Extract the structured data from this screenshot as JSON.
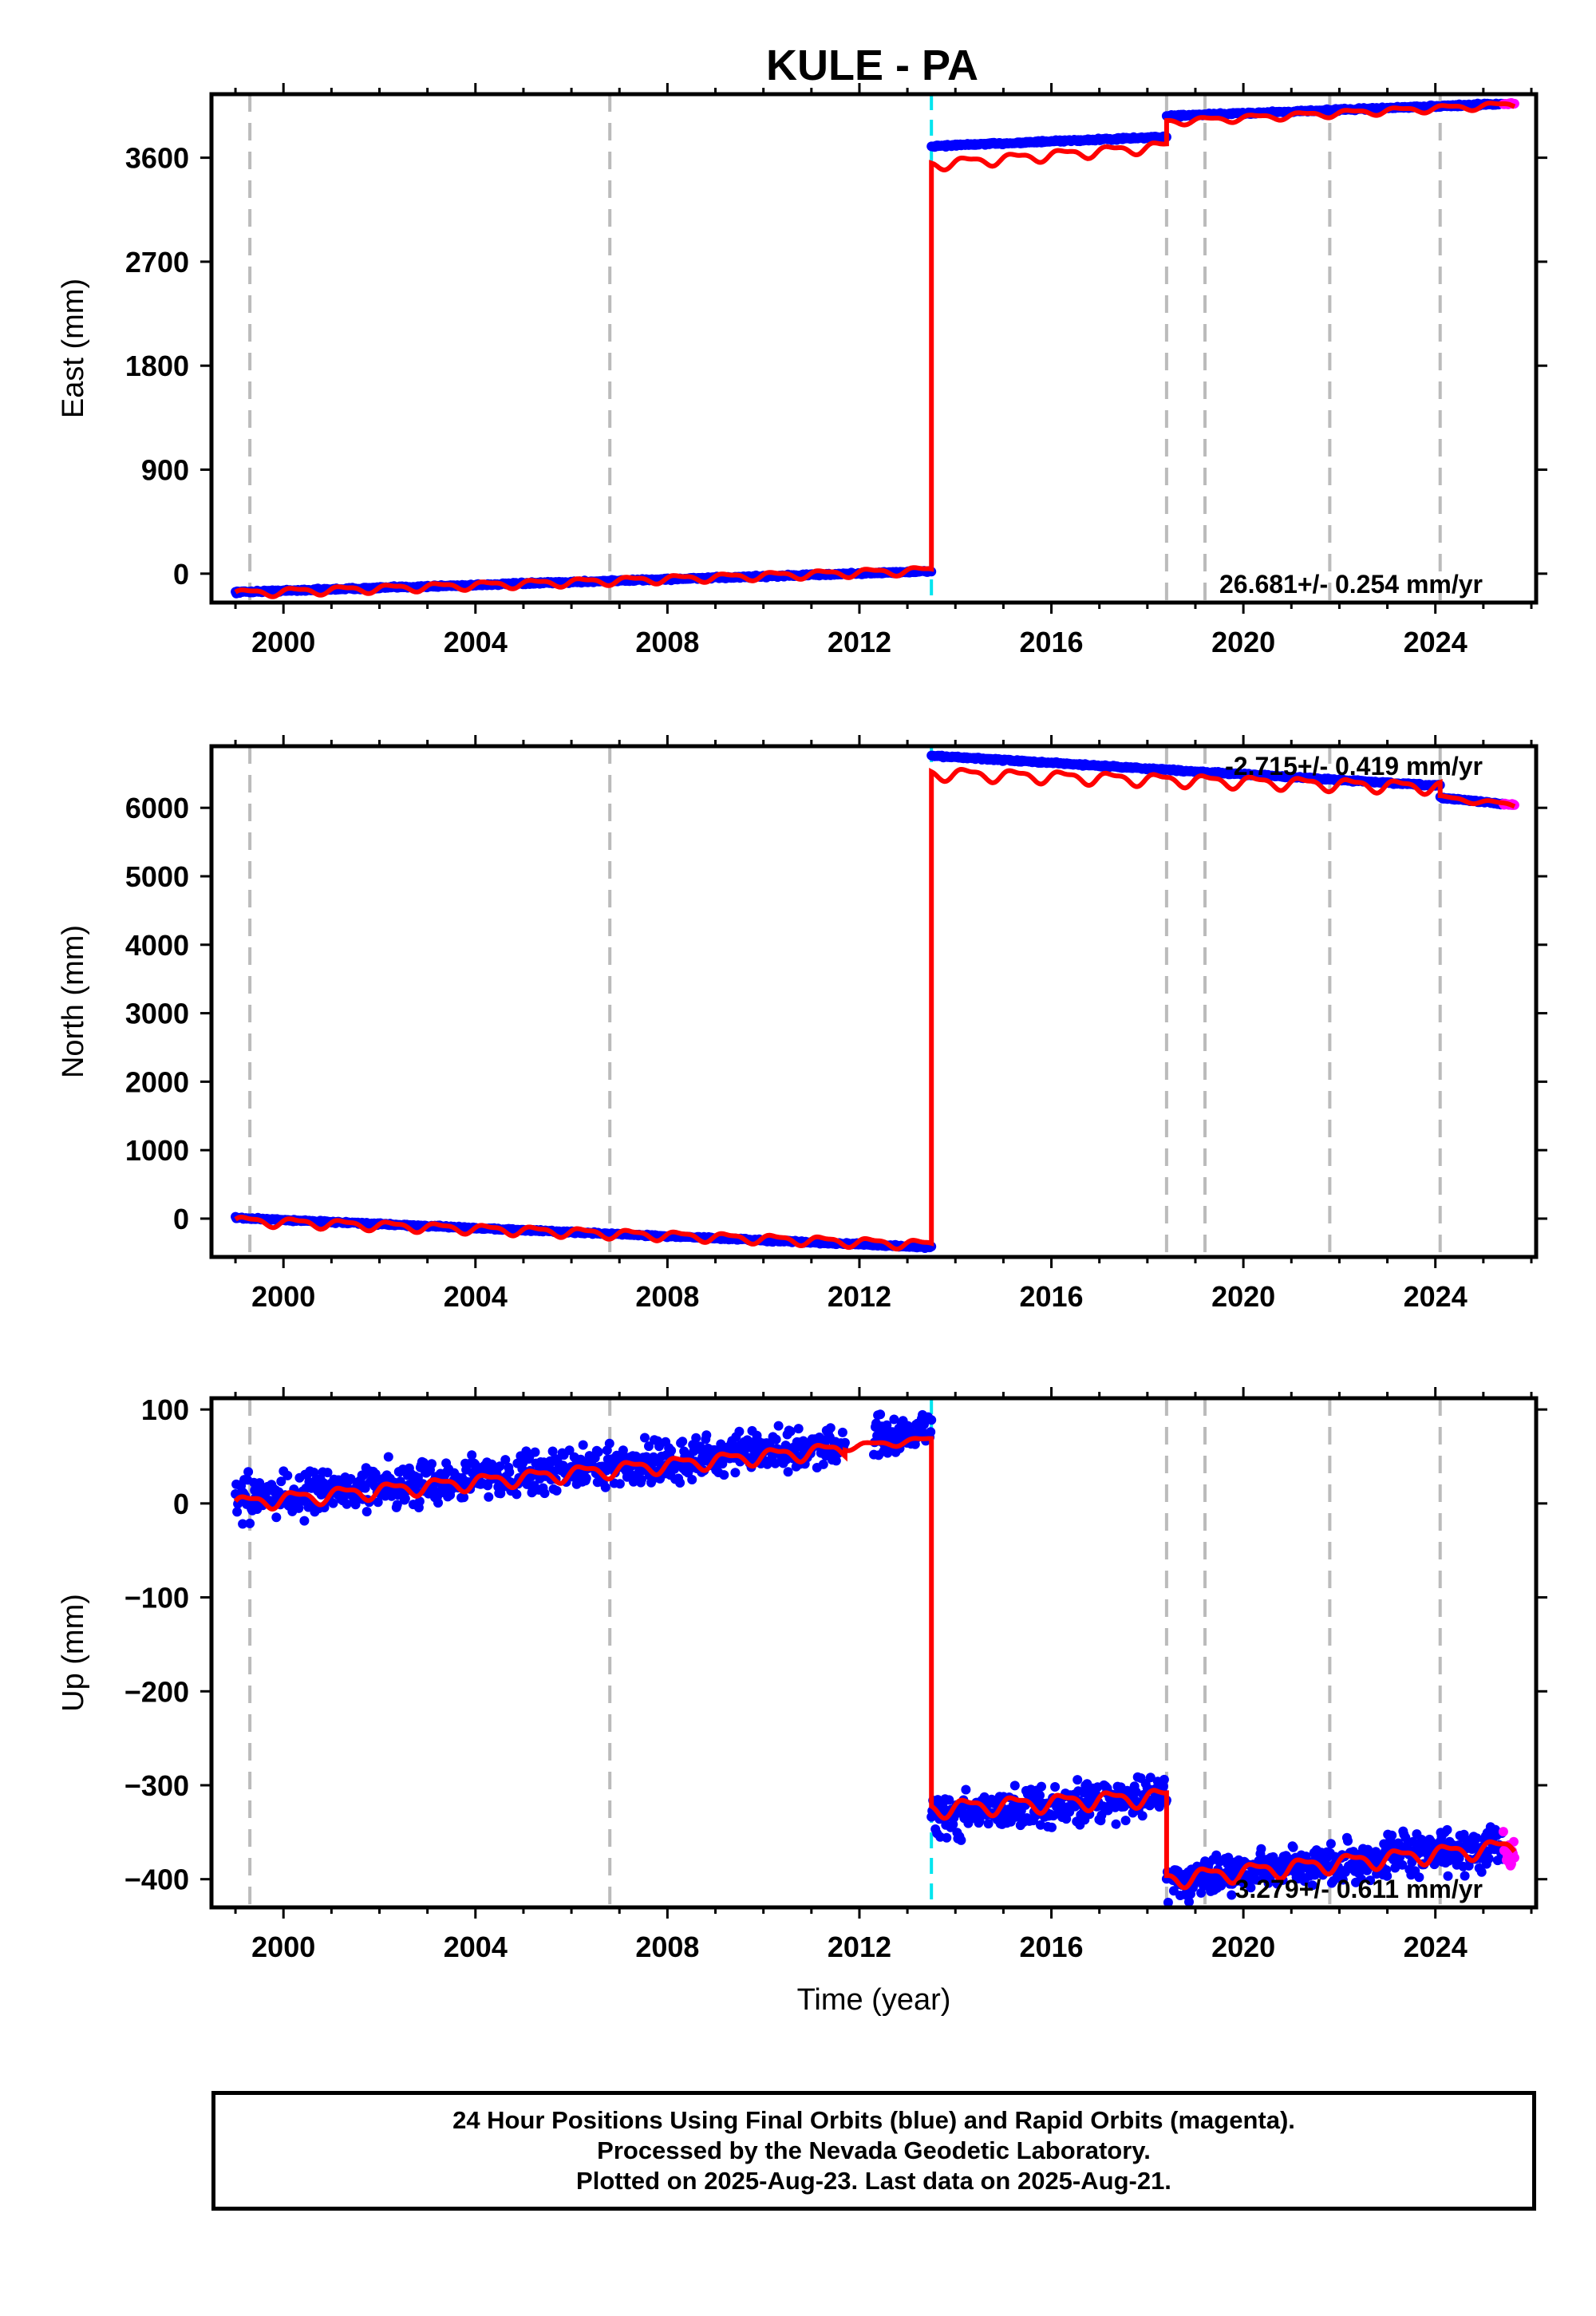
{
  "title": "KULE - PA",
  "footer": {
    "line1": "24 Hour Positions Using Final Orbits (blue) and Rapid Orbits (magenta).",
    "line2": "Processed by the Nevada Geodetic Laboratory.",
    "line3": "Plotted on 2025-Aug-23. Last data on 2025-Aug-21."
  },
  "colors": {
    "final_orbits": "#0000ff",
    "rapid_orbits": "#ff00ff",
    "model_fit": "#ff0000",
    "equipment_change": "#bbbbbb",
    "earthquake_offset": "#00e5ee"
  },
  "chart_data": [
    {
      "type": "scatter",
      "component": "East",
      "title": "KULE - PA",
      "xlabel": "",
      "ylabel": "East (mm)",
      "xlim": [
        1998.5,
        2026.1
      ],
      "ylim": [
        -250,
        4150
      ],
      "xticks": [
        2000,
        2004,
        2008,
        2012,
        2016,
        2020,
        2024
      ],
      "yticks": [
        0,
        900,
        1800,
        2700,
        3600
      ],
      "vertical_lines_dashed": [
        1999.3,
        2006.8,
        2018.4,
        2019.2,
        2021.8,
        2024.1
      ],
      "vertical_lines_cyan": [
        2013.5
      ],
      "rate_label": "26.681+/- 0.254 mm/yr",
      "series": [
        {
          "segments": [
            {
              "start": 1999.0,
              "end": 2013.5,
              "y0": -160,
              "y1": 20,
              "spread": 10
            },
            {
              "start": 2013.5,
              "end": 2018.4,
              "y0": 3700,
              "y1": 3780,
              "spread": 10
            },
            {
              "start": 2018.4,
              "end": 2025.65,
              "y0": 3960,
              "y1": 4070,
              "spread": 10
            }
          ]
        },
        {
          "rapid_start": 2025.4
        }
      ],
      "fit": {
        "segments": [
          {
            "start": 1999.0,
            "end": 2013.5,
            "y0": -170,
            "y1": 30,
            "amp": 30
          },
          {
            "start": 2013.5,
            "end": 2018.4,
            "y0": 3540,
            "y1": 3700,
            "amp": 40
          },
          {
            "start": 2018.4,
            "end": 2025.65,
            "y0": 3910,
            "y1": 4060,
            "amp": 25
          }
        ]
      }
    },
    {
      "type": "scatter",
      "component": "North",
      "xlabel": "",
      "ylabel": "North (mm)",
      "xlim": [
        1998.5,
        2026.1
      ],
      "ylim": [
        -560,
        6900
      ],
      "xticks": [
        2000,
        2004,
        2008,
        2012,
        2016,
        2020,
        2024
      ],
      "yticks": [
        0,
        1000,
        2000,
        3000,
        4000,
        5000,
        6000
      ],
      "vertical_lines_dashed": [
        1999.3,
        2006.8,
        2018.4,
        2019.2,
        2021.8,
        2024.1
      ],
      "vertical_lines_cyan": [
        2013.5
      ],
      "rate_label": "-2.715+/- 0.419 mm/yr",
      "series": [
        {
          "segments": [
            {
              "start": 1999.0,
              "end": 2013.5,
              "y0": 10,
              "y1": -420,
              "spread": 15
            },
            {
              "start": 2013.5,
              "end": 2024.1,
              "y0": 6760,
              "y1": 6320,
              "spread": 15
            },
            {
              "start": 2024.1,
              "end": 2025.65,
              "y0": 6150,
              "y1": 6040,
              "spread": 15
            }
          ]
        },
        {
          "rapid_start": 2025.4
        }
      ],
      "fit": {
        "segments": [
          {
            "start": 1999.0,
            "end": 2013.5,
            "y0": -30,
            "y1": -380,
            "amp": 60
          },
          {
            "start": 2013.5,
            "end": 2024.1,
            "y0": 6500,
            "y1": 6300,
            "amp": 80
          },
          {
            "start": 2024.1,
            "end": 2025.65,
            "y0": 6150,
            "y1": 6040,
            "amp": 30
          }
        ]
      }
    },
    {
      "type": "scatter",
      "component": "Up",
      "xlabel": "Time (year)",
      "ylabel": "Up (mm)",
      "xlim": [
        1998.5,
        2026.1
      ],
      "ylim": [
        -430,
        112
      ],
      "xticks": [
        2000,
        2004,
        2008,
        2012,
        2016,
        2020,
        2024
      ],
      "yticks": [
        100,
        0,
        -100,
        -200,
        -300,
        -400
      ],
      "vertical_lines_dashed": [
        1999.3,
        2006.8,
        2018.4,
        2019.2,
        2021.8,
        2024.1
      ],
      "vertical_lines_cyan": [
        2013.5
      ],
      "rate_label": "3.279+/- 0.611 mm/yr",
      "series": [
        {
          "segments": [
            {
              "start": 1999.0,
              "end": 2011.7,
              "y0": 5,
              "y1": 62,
              "spread": 24
            },
            {
              "start": 2012.3,
              "end": 2013.5,
              "y0": 72,
              "y1": 78,
              "spread": 20
            },
            {
              "start": 2013.5,
              "end": 2018.4,
              "y0": -335,
              "y1": -310,
              "spread": 24
            },
            {
              "start": 2018.4,
              "end": 2025.65,
              "y0": -400,
              "y1": -365,
              "spread": 24
            }
          ]
        },
        {
          "rapid_start": 2025.4
        }
      ],
      "fit": {
        "segments": [
          {
            "start": 1999.0,
            "end": 2011.7,
            "y0": 0,
            "y1": 58,
            "amp": 7
          },
          {
            "start": 2011.7,
            "end": 2013.5,
            "y0": 60,
            "y1": 68,
            "amp": 3
          },
          {
            "start": 2013.5,
            "end": 2018.4,
            "y0": -325,
            "y1": -312,
            "amp": 8
          },
          {
            "start": 2018.4,
            "end": 2025.65,
            "y0": -400,
            "y1": -365,
            "amp": 8
          }
        ]
      }
    }
  ]
}
